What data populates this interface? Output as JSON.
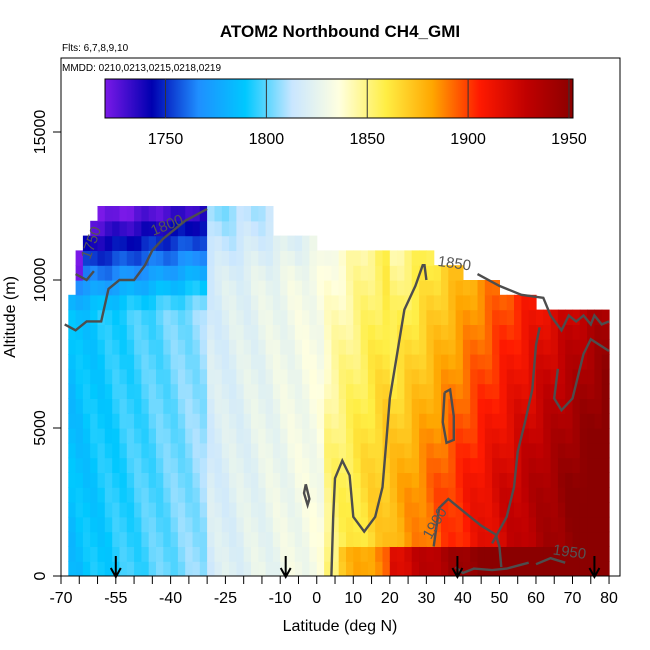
{
  "chart_data": {
    "type": "heatmap",
    "title": "ATOM2 Northbound CH4_GMI",
    "subtitle_flights": "Flts: 6,7,8,9,10",
    "subtitle_dates": "MMDD: 0210,0213,0215,0218,0219",
    "xlabel": "Latitude (deg N)",
    "ylabel": "Altitude (m)",
    "xlim": [
      -70,
      83
    ],
    "ylim": [
      0,
      17500
    ],
    "x_ticks": [
      -70,
      -55,
      -40,
      -25,
      -10,
      0,
      10,
      20,
      30,
      40,
      50,
      60,
      70,
      80
    ],
    "y_ticks": [
      0,
      5000,
      10000,
      15000
    ],
    "colorbar": {
      "min": 1720,
      "max": 1952,
      "ticks": [
        1750,
        1800,
        1850,
        1900,
        1950
      ],
      "colors": [
        "#7a19e8",
        "#0000b0",
        "#1f8fff",
        "#00c8ff",
        "#c9e6ff",
        "#ffffe0",
        "#ffee44",
        "#ffa600",
        "#ff1a00",
        "#c00000",
        "#8b0000"
      ]
    },
    "flight_markers_lat": [
      -55,
      -8.5,
      38.5,
      76
    ],
    "contours": [
      {
        "level": 1750,
        "label": "1750",
        "label_pos": [
          -60.5,
          11200
        ],
        "points": [
          [
            -66,
            10200
          ],
          [
            -63,
            10000
          ],
          [
            -61,
            10300
          ]
        ]
      },
      {
        "level": 1800,
        "label": "1800",
        "label_pos": [
          -40.5,
          11700
        ],
        "points": [
          [
            -69,
            8500
          ],
          [
            -66,
            8300
          ],
          [
            -63,
            8600
          ],
          [
            -59,
            8600
          ],
          [
            -57,
            9700
          ],
          [
            -54,
            10000
          ],
          [
            -50,
            10000
          ],
          [
            -47,
            10500
          ],
          [
            -45,
            11000
          ],
          [
            -42,
            11400
          ],
          [
            -36,
            12000
          ],
          [
            -30,
            12400
          ]
        ]
      },
      {
        "level": 1850,
        "label": "1850",
        "label_pos": [
          37.5,
          10400
        ],
        "points": [
          [
            4,
            0
          ],
          [
            4.5,
            2000
          ],
          [
            5,
            3300
          ],
          [
            7,
            3900
          ],
          [
            9,
            3400
          ],
          [
            10,
            2000
          ],
          [
            13,
            1500
          ],
          [
            16,
            2000
          ],
          [
            18,
            3000
          ],
          [
            19,
            4500
          ],
          [
            20,
            6000
          ],
          [
            22,
            7500
          ],
          [
            24,
            9000
          ],
          [
            27,
            9800
          ],
          [
            29,
            10500
          ],
          [
            29.5,
            10500
          ],
          [
            30,
            10000
          ]
        ]
      },
      {
        "level": 1850,
        "label": "",
        "points": [
          [
            44,
            10200
          ],
          [
            50,
            9800
          ],
          [
            56,
            9500
          ],
          [
            62,
            9400
          ],
          [
            64,
            8800
          ],
          [
            67,
            8300
          ],
          [
            69,
            8800
          ],
          [
            71,
            8600
          ],
          [
            73,
            8800
          ],
          [
            75,
            8500
          ],
          [
            76,
            8800
          ],
          [
            78,
            8500
          ],
          [
            80,
            8600
          ]
        ]
      },
      {
        "level": 1850,
        "label": "",
        "points": [
          [
            -3,
            3100
          ],
          [
            -2,
            2600
          ],
          [
            -2.5,
            2400
          ],
          [
            -3.5,
            2800
          ],
          [
            -3,
            3100
          ]
        ]
      },
      {
        "level": 1850,
        "label": "",
        "points": [
          [
            35,
            6200
          ],
          [
            36.5,
            6300
          ],
          [
            37.5,
            5400
          ],
          [
            37.5,
            4600
          ],
          [
            35.5,
            4500
          ],
          [
            34.5,
            5200
          ],
          [
            35,
            6200
          ]
        ]
      },
      {
        "level": 1900,
        "label": "1900",
        "label_pos": [
          33.5,
          1700
        ],
        "points": [
          [
            32,
            1000
          ],
          [
            33.5,
            2300
          ],
          [
            36,
            2600
          ],
          [
            40,
            2200
          ],
          [
            45,
            1700
          ],
          [
            49,
            1400
          ],
          [
            50,
            1000
          ],
          [
            50.5,
            300
          ]
        ]
      },
      {
        "level": 1900,
        "label": "",
        "points": [
          [
            48,
            1100
          ],
          [
            52,
            2000
          ],
          [
            54,
            3000
          ],
          [
            55,
            4200
          ],
          [
            57,
            5200
          ],
          [
            59,
            6300
          ],
          [
            60,
            7800
          ],
          [
            61,
            8400
          ]
        ]
      },
      {
        "level": 1900,
        "label": "",
        "points": [
          [
            66,
            7000
          ],
          [
            65,
            6000
          ],
          [
            67,
            5600
          ],
          [
            70,
            6000
          ],
          [
            73,
            7500
          ],
          [
            75,
            8000
          ],
          [
            80,
            7600
          ]
        ]
      },
      {
        "level": 1900,
        "label": "",
        "points": [
          [
            38,
            300
          ],
          [
            40,
            100
          ],
          [
            43,
            250
          ],
          [
            48,
            200
          ],
          [
            52,
            250
          ],
          [
            58,
            450
          ]
        ]
      },
      {
        "level": 1950,
        "label": "1950",
        "label_pos": [
          69,
          650
        ],
        "points": [
          [
            60,
            400
          ],
          [
            64,
            600
          ],
          [
            68,
            450
          ]
        ]
      }
    ]
  }
}
